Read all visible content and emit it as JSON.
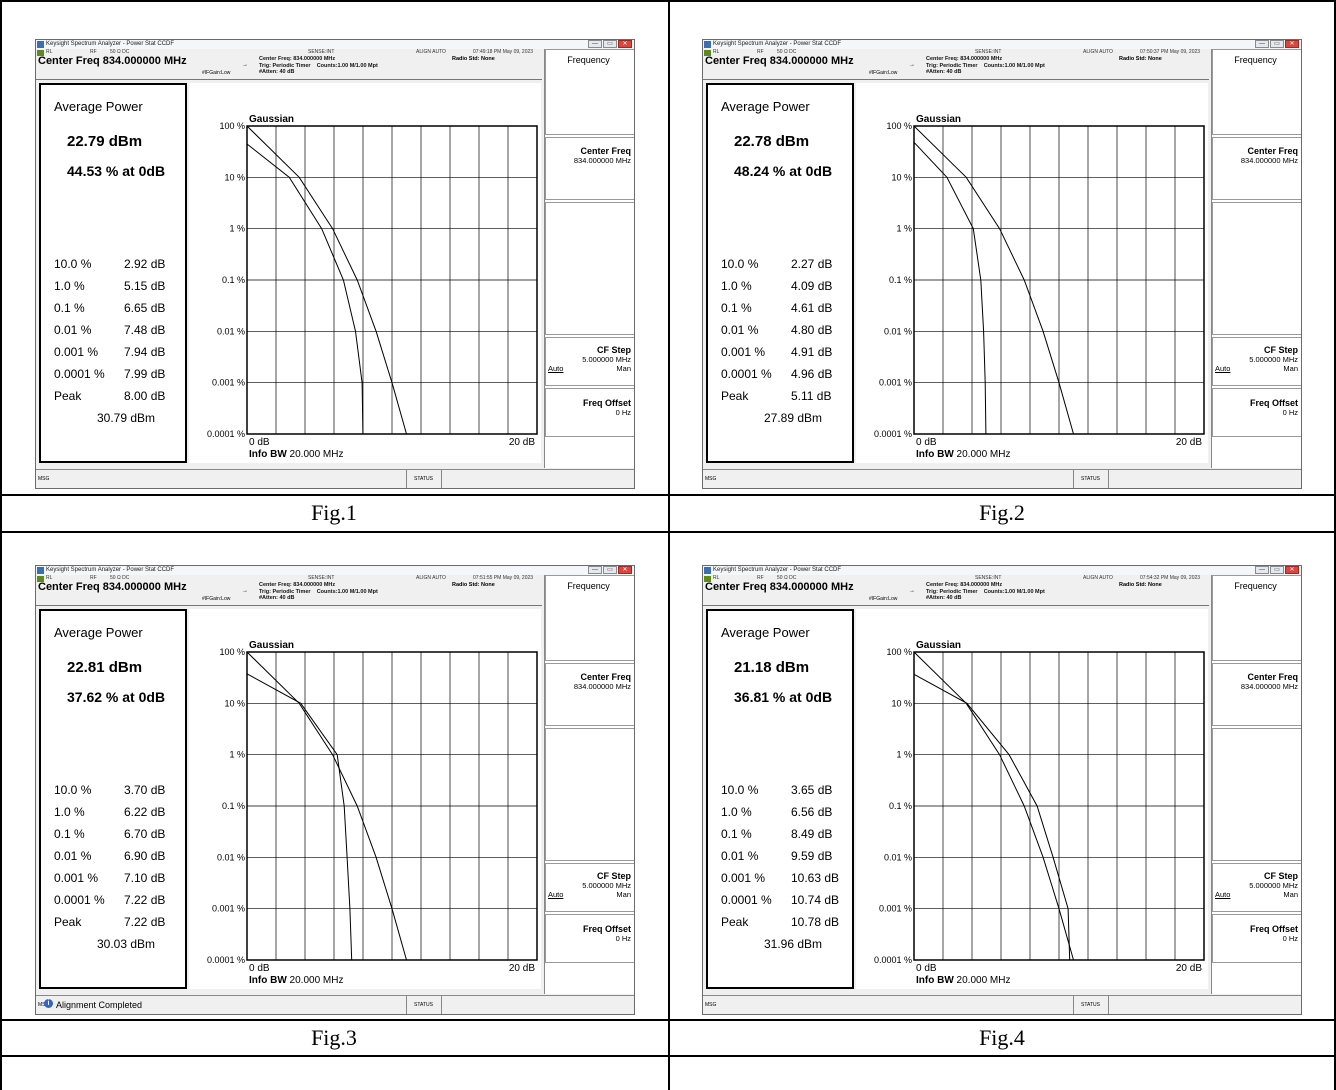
{
  "captions": [
    "Fig.1",
    "Fig.2",
    "Fig.3",
    "Fig.4"
  ],
  "common": {
    "window_title": "Keysight Spectrum Analyzer - Power Stat CCDF",
    "rl": "RL",
    "rf": "RF",
    "impedance": "50 Ω  DC",
    "sense": "SENSE:INT",
    "align": "ALIGN AUTO",
    "center_freq_header": "Center Freq 834.000000 MHz",
    "center_freq_info": "Center Freq: 834.000000 MHz",
    "trig_info": "Trig: Periodic Timer",
    "counts_info": "Counts:1.00 M/1.00 Mpt",
    "atten": "#Atten: 40 dB",
    "ifgain": "#IFGain:Low",
    "radio_std": "Radio Std: None",
    "avg_title": "Average Power",
    "chart_label": "Gaussian",
    "x_left": "0 dB",
    "x_right": "20 dB",
    "info_bw_bold": "Info BW",
    "info_bw_value": "20.000 MHz",
    "msg": "MSG",
    "status": "STATUS",
    "softkeys": {
      "menu": "Frequency",
      "center_freq": "Center Freq",
      "center_freq_value": "834.000000 MHz",
      "cf_step": "CF Step",
      "cf_step_value": "5.000000 MHz",
      "auto": "Auto",
      "man": "Man",
      "freq_offset": "Freq Offset",
      "freq_offset_value": "0 Hz"
    },
    "win_buttons": [
      "—",
      "▭",
      "✕"
    ]
  },
  "panels": [
    {
      "timestamp": "07:49:18 PM May 09, 2023",
      "avg_dbm": "22.79 dBm",
      "avg_pct": "44.53 % at 0dB",
      "stats": [
        {
          "label": "10.0 %",
          "value": "2.92 dB"
        },
        {
          "label": "1.0 %",
          "value": "5.15 dB"
        },
        {
          "label": "0.1 %",
          "value": "6.65 dB"
        },
        {
          "label": "0.01 %",
          "value": "7.48 dB"
        },
        {
          "label": "0.001 %",
          "value": "7.94 dB"
        },
        {
          "label": "0.0001 %",
          "value": "7.99 dB"
        },
        {
          "label": "Peak",
          "value": "8.00 dB"
        }
      ],
      "peak_dbm": "30.79 dBm",
      "msg_text": ""
    },
    {
      "timestamp": "07:50:37 PM May 09, 2023",
      "avg_dbm": "22.78 dBm",
      "avg_pct": "48.24 % at 0dB",
      "stats": [
        {
          "label": "10.0 %",
          "value": "2.27 dB"
        },
        {
          "label": "1.0 %",
          "value": "4.09 dB"
        },
        {
          "label": "0.1 %",
          "value": "4.61 dB"
        },
        {
          "label": "0.01 %",
          "value": "4.80 dB"
        },
        {
          "label": "0.001 %",
          "value": "4.91 dB"
        },
        {
          "label": "0.0001 %",
          "value": "4.96 dB"
        },
        {
          "label": "Peak",
          "value": "5.11 dB"
        }
      ],
      "peak_dbm": "27.89 dBm",
      "msg_text": ""
    },
    {
      "timestamp": "07:51:55 PM May 09, 2023",
      "avg_dbm": "22.81 dBm",
      "avg_pct": "37.62 % at 0dB",
      "stats": [
        {
          "label": "10.0 %",
          "value": "3.70 dB"
        },
        {
          "label": "1.0 %",
          "value": "6.22 dB"
        },
        {
          "label": "0.1 %",
          "value": "6.70 dB"
        },
        {
          "label": "0.01 %",
          "value": "6.90 dB"
        },
        {
          "label": "0.001 %",
          "value": "7.10 dB"
        },
        {
          "label": "0.0001 %",
          "value": "7.22 dB"
        },
        {
          "label": "Peak",
          "value": "7.22 dB"
        }
      ],
      "peak_dbm": "30.03 dBm",
      "msg_text": "Alignment Completed"
    },
    {
      "timestamp": "07:54:32 PM May 09, 2023",
      "avg_dbm": "21.18 dBm",
      "avg_pct": "36.81 % at 0dB",
      "stats": [
        {
          "label": "10.0 %",
          "value": "3.65 dB"
        },
        {
          "label": "1.0 %",
          "value": "6.56 dB"
        },
        {
          "label": "0.1 %",
          "value": "8.49 dB"
        },
        {
          "label": "0.01 %",
          "value": "9.59 dB"
        },
        {
          "label": "0.001 %",
          "value": "10.63 dB"
        },
        {
          "label": "0.0001 %",
          "value": "10.74 dB"
        },
        {
          "label": "Peak",
          "value": "10.78 dB"
        }
      ],
      "peak_dbm": "31.96 dBm",
      "msg_text": ""
    }
  ],
  "chart_data": [
    {
      "type": "line",
      "title": "Gaussian",
      "xlim": [
        0,
        20
      ],
      "ylim": [
        0.0001,
        100
      ],
      "yscale": "log",
      "yticks": [
        "100 %",
        "10 %",
        "1 %",
        "0.1 %",
        "0.01 %",
        "0.001 %",
        "0.0001 %"
      ],
      "grid": true,
      "series": [
        {
          "x": [
            0,
            2.92,
            5.15,
            6.65,
            7.48,
            7.94,
            7.99,
            8.0
          ],
          "y": [
            44.53,
            10,
            1,
            0.1,
            0.01,
            0.001,
            0.0001,
            0.0001
          ]
        },
        {
          "x": [
            0,
            3.6,
            5.9,
            7.6,
            8.9,
            10.0,
            11.0,
            11.6
          ],
          "y": [
            100,
            10,
            1,
            0.1,
            0.01,
            0.001,
            0.0001,
            0.0001
          ]
        }
      ]
    },
    {
      "type": "line",
      "title": "Gaussian",
      "xlim": [
        0,
        20
      ],
      "ylim": [
        0.0001,
        100
      ],
      "yscale": "log",
      "yticks": [
        "100 %",
        "10 %",
        "1 %",
        "0.1 %",
        "0.01 %",
        "0.001 %",
        "0.0001 %"
      ],
      "grid": true,
      "series": [
        {
          "x": [
            0,
            2.27,
            4.09,
            4.61,
            4.8,
            4.91,
            4.96,
            5.11
          ],
          "y": [
            48.24,
            10,
            1,
            0.1,
            0.01,
            0.001,
            0.0001,
            0.0001
          ]
        },
        {
          "x": [
            0,
            3.6,
            5.9,
            7.6,
            8.9,
            10.0,
            11.0,
            11.6
          ],
          "y": [
            100,
            10,
            1,
            0.1,
            0.01,
            0.001,
            0.0001,
            0.0001
          ]
        }
      ]
    },
    {
      "type": "line",
      "title": "Gaussian",
      "xlim": [
        0,
        20
      ],
      "ylim": [
        0.0001,
        100
      ],
      "yscale": "log",
      "yticks": [
        "100 %",
        "10 %",
        "1 %",
        "0.1 %",
        "0.01 %",
        "0.001 %",
        "0.0001 %"
      ],
      "grid": true,
      "series": [
        {
          "x": [
            0,
            3.7,
            6.22,
            6.7,
            6.9,
            7.1,
            7.22,
            7.22
          ],
          "y": [
            37.62,
            10,
            1,
            0.1,
            0.01,
            0.001,
            0.0001,
            0.0001
          ]
        },
        {
          "x": [
            0,
            3.6,
            5.9,
            7.6,
            8.9,
            10.0,
            11.0,
            11.6
          ],
          "y": [
            100,
            10,
            1,
            0.1,
            0.01,
            0.001,
            0.0001,
            0.0001
          ]
        }
      ]
    },
    {
      "type": "line",
      "title": "Gaussian",
      "xlim": [
        0,
        20
      ],
      "ylim": [
        0.0001,
        100
      ],
      "yscale": "log",
      "yticks": [
        "100 %",
        "10 %",
        "1 %",
        "0.1 %",
        "0.01 %",
        "0.001 %",
        "0.0001 %"
      ],
      "grid": true,
      "series": [
        {
          "x": [
            0,
            3.65,
            6.56,
            8.49,
            9.59,
            10.63,
            10.74,
            10.78
          ],
          "y": [
            36.81,
            10,
            1,
            0.1,
            0.01,
            0.001,
            0.0001,
            0.0001
          ]
        },
        {
          "x": [
            0,
            3.6,
            5.9,
            7.6,
            8.9,
            10.0,
            11.0,
            11.6
          ],
          "y": [
            100,
            10,
            1,
            0.1,
            0.01,
            0.001,
            0.0001,
            0.0001
          ]
        }
      ]
    }
  ]
}
